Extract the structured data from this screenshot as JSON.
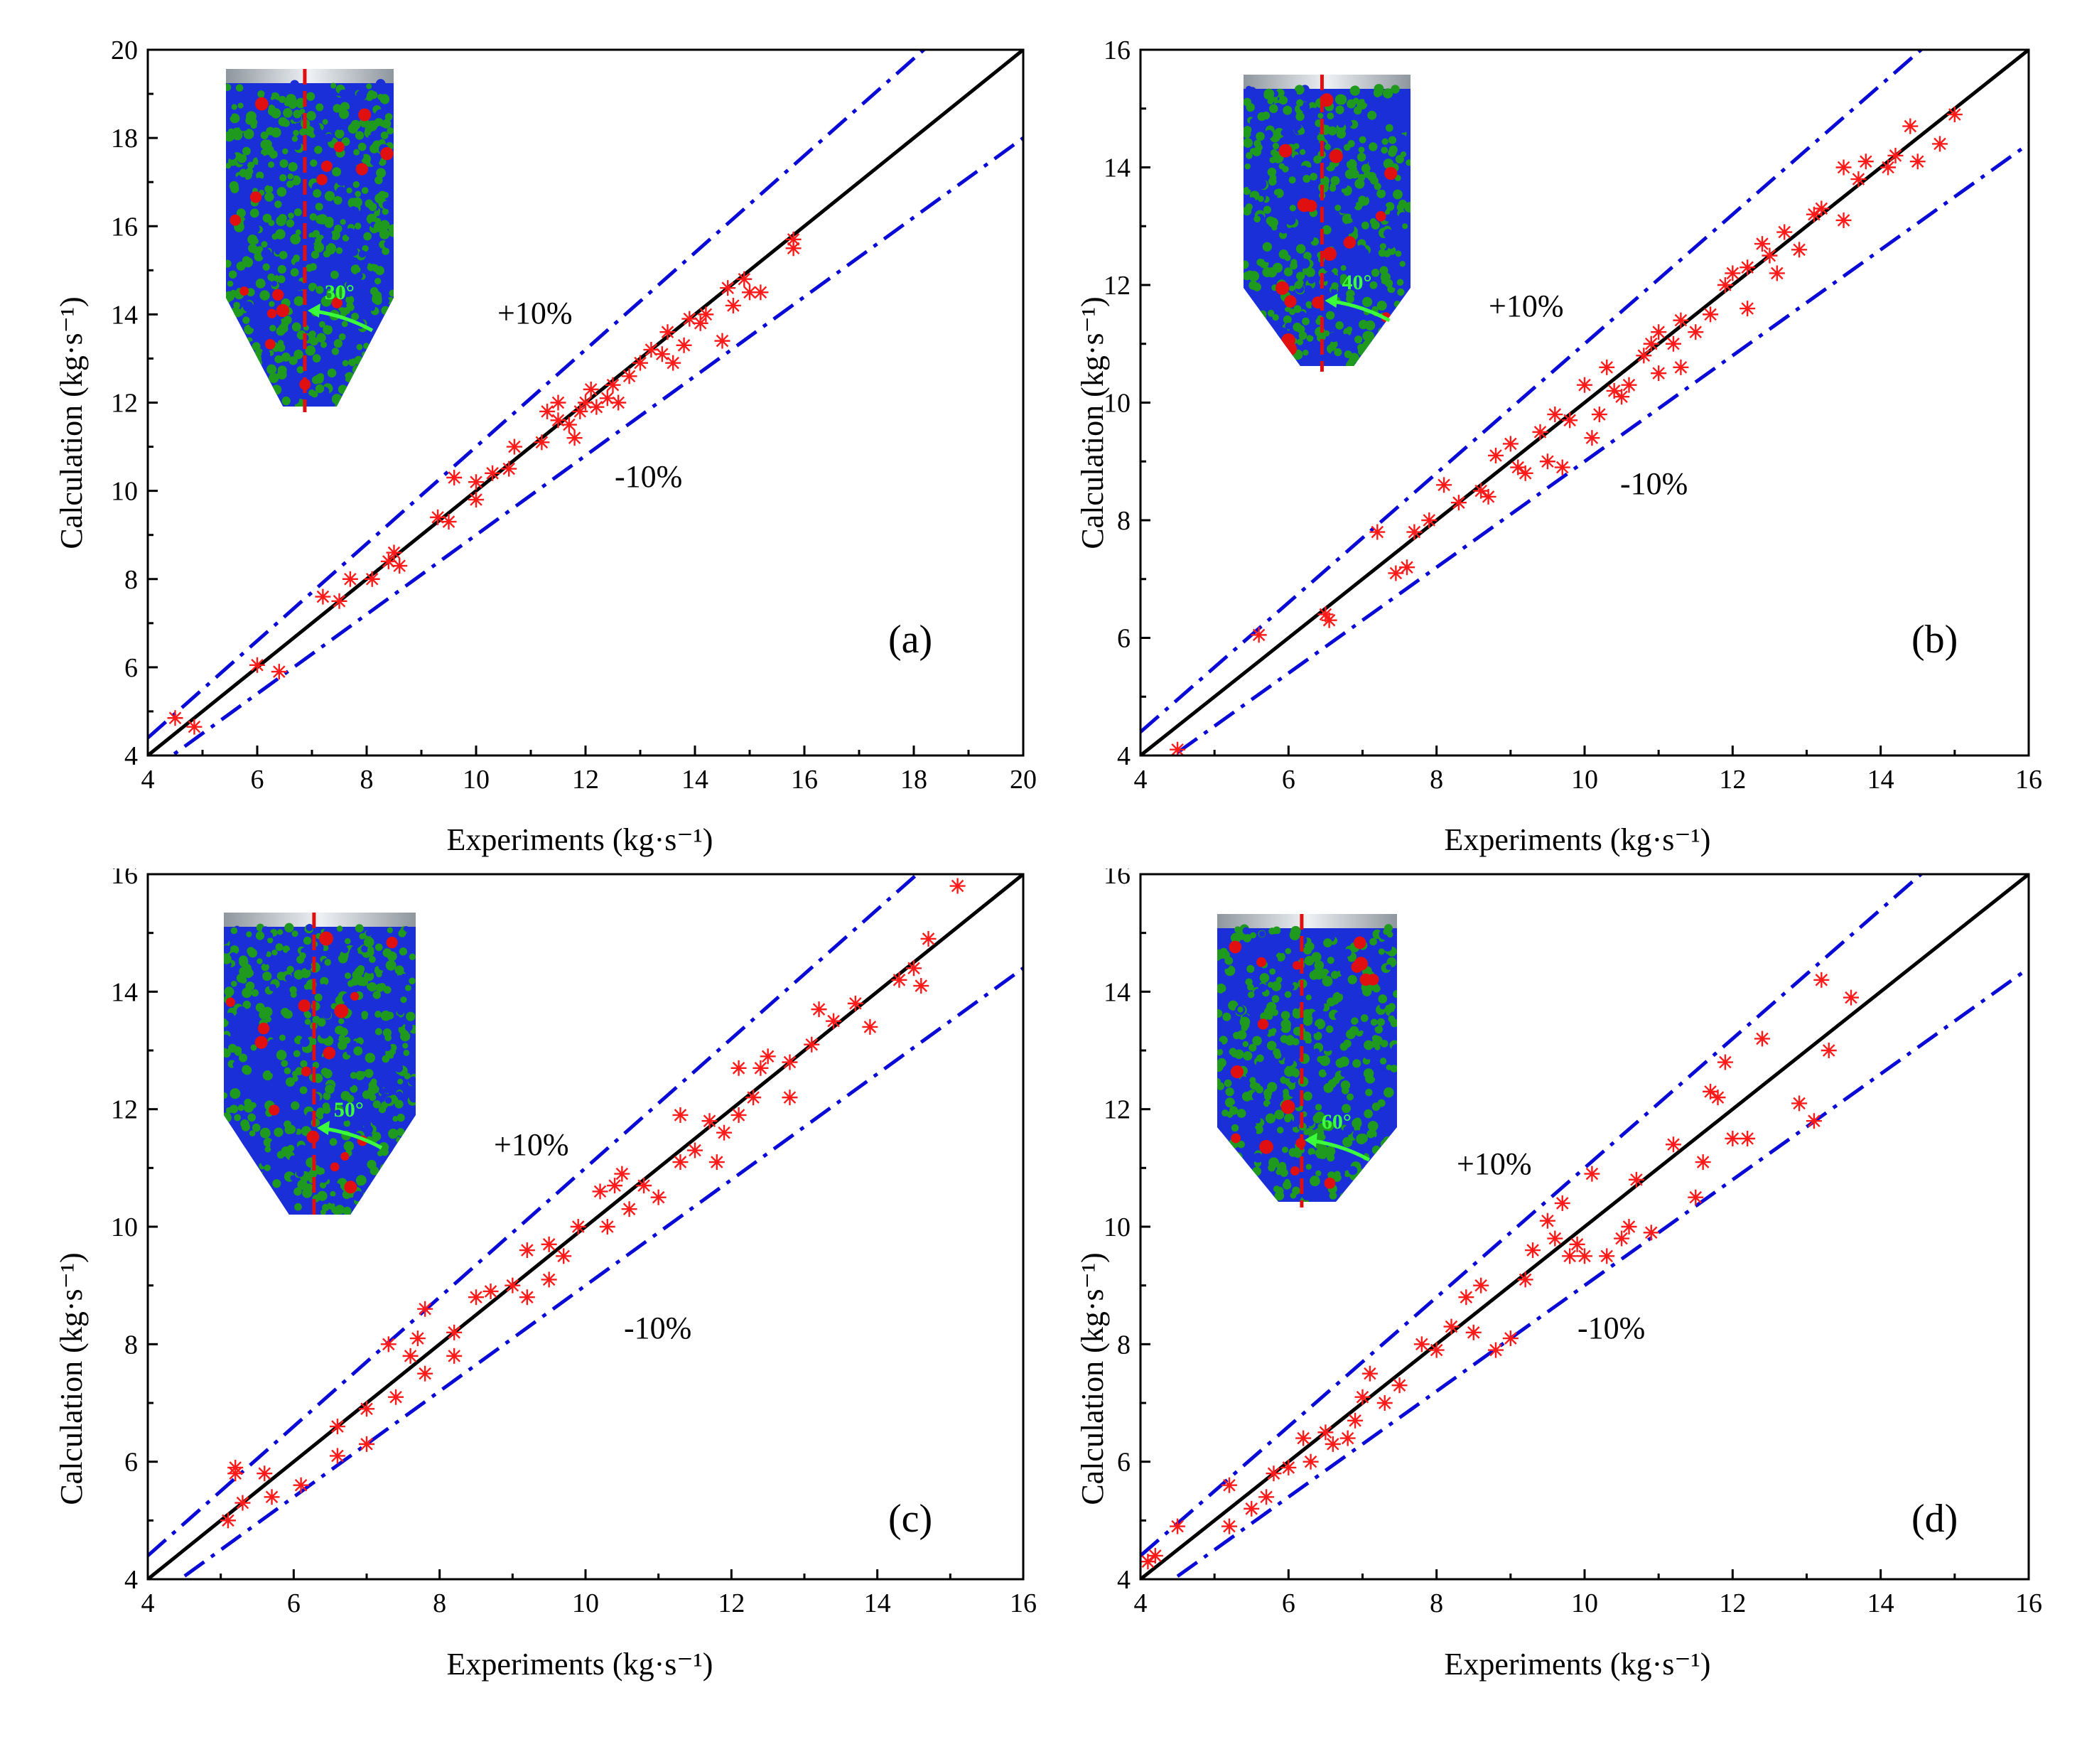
{
  "figure": {
    "colors": {
      "ideal_line": "#000000",
      "band_line": "#0a0ad6",
      "marker": "#ff1a1a",
      "inset_particle_green": "#1f9a1f",
      "inset_particle_blue": "#1b2fd8",
      "inset_particle_red": "#e01010",
      "inset_angle_arrow": "#3cff3c"
    },
    "marker_symbol": "asterisk"
  },
  "chart_data": [
    {
      "id": "a",
      "type": "scatter",
      "panel_label": "(a)",
      "xlabel": "Experiments (kg·s⁻¹)",
      "ylabel": "Calculation (kg·s⁻¹)",
      "xlim": [
        4,
        20
      ],
      "ylim": [
        4,
        20
      ],
      "xticks": [
        4,
        6,
        8,
        10,
        12,
        14,
        16,
        18,
        20
      ],
      "yticks": [
        4,
        6,
        8,
        10,
        12,
        14,
        16,
        18,
        20
      ],
      "reference_lines": {
        "ideal_slope": 1.0,
        "upper_slope": 1.1,
        "lower_slope": 0.9
      },
      "band_labels": {
        "upper": "+10%",
        "lower": "-10%"
      },
      "inset_angle_label": "30°",
      "points": [
        [
          4.5,
          4.85
        ],
        [
          4.85,
          4.65
        ],
        [
          6.0,
          6.05
        ],
        [
          6.4,
          5.9
        ],
        [
          7.2,
          7.6
        ],
        [
          7.5,
          7.5
        ],
        [
          7.7,
          8.0
        ],
        [
          8.1,
          8.0
        ],
        [
          8.4,
          8.4
        ],
        [
          8.6,
          8.3
        ],
        [
          8.5,
          8.6
        ],
        [
          9.3,
          9.4
        ],
        [
          9.5,
          9.3
        ],
        [
          9.6,
          10.3
        ],
        [
          10.0,
          9.8
        ],
        [
          10.0,
          10.2
        ],
        [
          10.3,
          10.4
        ],
        [
          10.6,
          10.5
        ],
        [
          10.7,
          11.0
        ],
        [
          11.2,
          11.1
        ],
        [
          11.3,
          11.8
        ],
        [
          11.5,
          11.6
        ],
        [
          11.5,
          12.0
        ],
        [
          11.7,
          11.5
        ],
        [
          11.8,
          11.2
        ],
        [
          11.9,
          11.8
        ],
        [
          12.0,
          12.0
        ],
        [
          12.1,
          12.3
        ],
        [
          12.2,
          11.9
        ],
        [
          12.4,
          12.1
        ],
        [
          12.5,
          12.4
        ],
        [
          12.6,
          12.0
        ],
        [
          12.8,
          12.6
        ],
        [
          13.0,
          12.9
        ],
        [
          13.2,
          13.2
        ],
        [
          13.4,
          13.1
        ],
        [
          13.5,
          13.6
        ],
        [
          13.6,
          12.9
        ],
        [
          13.8,
          13.3
        ],
        [
          13.9,
          13.9
        ],
        [
          14.1,
          13.8
        ],
        [
          14.2,
          14.0
        ],
        [
          14.5,
          13.4
        ],
        [
          14.6,
          14.6
        ],
        [
          14.7,
          14.2
        ],
        [
          14.9,
          14.8
        ],
        [
          15.0,
          14.5
        ],
        [
          15.2,
          14.5
        ],
        [
          15.8,
          15.5
        ],
        [
          15.8,
          15.7
        ]
      ]
    },
    {
      "id": "b",
      "type": "scatter",
      "panel_label": "(b)",
      "xlabel": "Experiments (kg·s⁻¹)",
      "ylabel": "Calculation (kg·s⁻¹)",
      "xlim": [
        4,
        16
      ],
      "ylim": [
        4,
        16
      ],
      "xticks": [
        4,
        6,
        8,
        10,
        12,
        14,
        16
      ],
      "yticks": [
        4,
        6,
        8,
        10,
        12,
        14,
        16
      ],
      "reference_lines": {
        "ideal_slope": 1.0,
        "upper_slope": 1.1,
        "lower_slope": 0.9
      },
      "band_labels": {
        "upper": "+10%",
        "lower": "-10%"
      },
      "inset_angle_label": "40°",
      "points": [
        [
          4.5,
          4.1
        ],
        [
          5.6,
          6.05
        ],
        [
          6.5,
          6.4
        ],
        [
          6.55,
          6.3
        ],
        [
          7.2,
          7.8
        ],
        [
          7.45,
          7.1
        ],
        [
          7.6,
          7.2
        ],
        [
          7.7,
          7.8
        ],
        [
          7.9,
          8.0
        ],
        [
          8.1,
          8.6
        ],
        [
          8.3,
          8.3
        ],
        [
          8.6,
          8.5
        ],
        [
          8.7,
          8.4
        ],
        [
          8.8,
          9.1
        ],
        [
          9.0,
          9.3
        ],
        [
          9.1,
          8.9
        ],
        [
          9.2,
          8.8
        ],
        [
          9.4,
          9.5
        ],
        [
          9.5,
          9.0
        ],
        [
          9.6,
          9.8
        ],
        [
          9.7,
          8.9
        ],
        [
          9.8,
          9.7
        ],
        [
          10.0,
          10.3
        ],
        [
          10.1,
          9.4
        ],
        [
          10.2,
          9.8
        ],
        [
          10.3,
          10.6
        ],
        [
          10.4,
          10.2
        ],
        [
          10.5,
          10.1
        ],
        [
          10.6,
          10.3
        ],
        [
          10.8,
          10.8
        ],
        [
          10.9,
          11.0
        ],
        [
          11.0,
          11.2
        ],
        [
          11.0,
          10.5
        ],
        [
          11.2,
          11.0
        ],
        [
          11.3,
          11.4
        ],
        [
          11.3,
          10.6
        ],
        [
          11.5,
          11.2
        ],
        [
          11.7,
          11.5
        ],
        [
          11.9,
          12.0
        ],
        [
          12.0,
          12.2
        ],
        [
          12.2,
          11.6
        ],
        [
          12.2,
          12.3
        ],
        [
          12.4,
          12.7
        ],
        [
          12.5,
          12.5
        ],
        [
          12.6,
          12.2
        ],
        [
          12.7,
          12.9
        ],
        [
          12.9,
          12.6
        ],
        [
          13.1,
          13.2
        ],
        [
          13.2,
          13.3
        ],
        [
          13.5,
          14.0
        ],
        [
          13.5,
          13.1
        ],
        [
          13.7,
          13.8
        ],
        [
          13.8,
          14.1
        ],
        [
          14.1,
          14.0
        ],
        [
          14.2,
          14.2
        ],
        [
          14.4,
          14.7
        ],
        [
          14.5,
          14.1
        ],
        [
          14.8,
          14.4
        ],
        [
          15.0,
          14.9
        ]
      ]
    },
    {
      "id": "c",
      "type": "scatter",
      "panel_label": "(c)",
      "xlabel": "Experiments (kg·s⁻¹)",
      "ylabel": "Calculation (kg·s⁻¹)",
      "xlim": [
        4,
        16
      ],
      "ylim": [
        4,
        16
      ],
      "xticks": [
        4,
        6,
        8,
        10,
        12,
        14,
        16
      ],
      "yticks": [
        4,
        6,
        8,
        10,
        12,
        14,
        16
      ],
      "reference_lines": {
        "ideal_slope": 1.0,
        "upper_slope": 1.1,
        "lower_slope": 0.9
      },
      "band_labels": {
        "upper": "+10%",
        "lower": "-10%"
      },
      "inset_angle_label": "50°",
      "points": [
        [
          5.1,
          5.0
        ],
        [
          5.2,
          5.8
        ],
        [
          5.2,
          5.9
        ],
        [
          5.3,
          5.3
        ],
        [
          5.6,
          5.8
        ],
        [
          5.7,
          5.4
        ],
        [
          6.1,
          5.6
        ],
        [
          6.6,
          6.6
        ],
        [
          6.6,
          6.1
        ],
        [
          7.0,
          6.9
        ],
        [
          7.0,
          6.3
        ],
        [
          7.3,
          8.0
        ],
        [
          7.4,
          7.1
        ],
        [
          7.6,
          7.8
        ],
        [
          7.7,
          8.1
        ],
        [
          7.8,
          7.5
        ],
        [
          7.8,
          8.6
        ],
        [
          8.2,
          8.2
        ],
        [
          8.2,
          7.8
        ],
        [
          8.5,
          8.8
        ],
        [
          8.7,
          8.9
        ],
        [
          9.0,
          9.0
        ],
        [
          9.2,
          9.6
        ],
        [
          9.2,
          8.8
        ],
        [
          9.5,
          9.7
        ],
        [
          9.5,
          9.1
        ],
        [
          9.7,
          9.5
        ],
        [
          9.9,
          10.0
        ],
        [
          10.2,
          10.6
        ],
        [
          10.3,
          10.0
        ],
        [
          10.4,
          10.7
        ],
        [
          10.5,
          10.9
        ],
        [
          10.6,
          10.3
        ],
        [
          10.8,
          10.7
        ],
        [
          11.0,
          10.5
        ],
        [
          11.3,
          11.1
        ],
        [
          11.3,
          11.9
        ],
        [
          11.5,
          11.3
        ],
        [
          11.7,
          11.8
        ],
        [
          11.8,
          11.1
        ],
        [
          11.9,
          11.6
        ],
        [
          12.1,
          12.7
        ],
        [
          12.1,
          11.9
        ],
        [
          12.3,
          12.2
        ],
        [
          12.4,
          12.7
        ],
        [
          12.5,
          12.9
        ],
        [
          12.8,
          12.8
        ],
        [
          12.8,
          12.2
        ],
        [
          13.1,
          13.1
        ],
        [
          13.2,
          13.7
        ],
        [
          13.4,
          13.5
        ],
        [
          13.7,
          13.8
        ],
        [
          13.9,
          13.4
        ],
        [
          14.3,
          14.2
        ],
        [
          14.5,
          14.4
        ],
        [
          14.6,
          14.1
        ],
        [
          14.7,
          14.9
        ],
        [
          15.1,
          15.8
        ]
      ]
    },
    {
      "id": "d",
      "type": "scatter",
      "panel_label": "(d)",
      "xlabel": "Experiments (kg·s⁻¹)",
      "ylabel": "Calculation (kg·s⁻¹)",
      "xlim": [
        4,
        16
      ],
      "ylim": [
        4,
        16
      ],
      "xticks": [
        4,
        6,
        8,
        10,
        12,
        14,
        16
      ],
      "yticks": [
        4,
        6,
        8,
        10,
        12,
        14,
        16
      ],
      "reference_lines": {
        "ideal_slope": 1.0,
        "upper_slope": 1.1,
        "lower_slope": 0.9
      },
      "band_labels": {
        "upper": "+10%",
        "lower": "-10%"
      },
      "inset_angle_label": "60°",
      "points": [
        [
          4.1,
          4.3
        ],
        [
          4.2,
          4.4
        ],
        [
          4.5,
          4.9
        ],
        [
          5.2,
          5.6
        ],
        [
          5.2,
          4.9
        ],
        [
          5.5,
          5.2
        ],
        [
          5.7,
          5.4
        ],
        [
          5.8,
          5.8
        ],
        [
          6.0,
          5.9
        ],
        [
          6.2,
          6.4
        ],
        [
          6.3,
          6.0
        ],
        [
          6.5,
          6.5
        ],
        [
          6.6,
          6.3
        ],
        [
          6.8,
          6.4
        ],
        [
          6.9,
          6.7
        ],
        [
          7.0,
          7.1
        ],
        [
          7.1,
          7.5
        ],
        [
          7.3,
          7.0
        ],
        [
          7.5,
          7.3
        ],
        [
          7.8,
          8.0
        ],
        [
          8.0,
          7.9
        ],
        [
          8.2,
          8.3
        ],
        [
          8.4,
          8.8
        ],
        [
          8.5,
          8.2
        ],
        [
          8.6,
          9.0
        ],
        [
          8.8,
          7.9
        ],
        [
          9.0,
          8.1
        ],
        [
          9.2,
          9.1
        ],
        [
          9.3,
          9.6
        ],
        [
          9.5,
          10.1
        ],
        [
          9.6,
          9.8
        ],
        [
          9.7,
          10.4
        ],
        [
          9.8,
          9.5
        ],
        [
          9.9,
          9.7
        ],
        [
          10.0,
          9.5
        ],
        [
          10.1,
          10.9
        ],
        [
          10.3,
          9.5
        ],
        [
          10.5,
          9.8
        ],
        [
          10.6,
          10.0
        ],
        [
          10.7,
          10.8
        ],
        [
          10.9,
          9.9
        ],
        [
          11.2,
          11.4
        ],
        [
          11.5,
          10.5
        ],
        [
          11.6,
          11.1
        ],
        [
          11.7,
          12.3
        ],
        [
          11.8,
          12.2
        ],
        [
          11.9,
          12.8
        ],
        [
          12.0,
          11.5
        ],
        [
          12.2,
          11.5
        ],
        [
          12.4,
          13.2
        ],
        [
          12.9,
          12.1
        ],
        [
          13.1,
          11.8
        ],
        [
          13.2,
          14.2
        ],
        [
          13.3,
          13.0
        ],
        [
          13.6,
          13.9
        ]
      ]
    }
  ]
}
